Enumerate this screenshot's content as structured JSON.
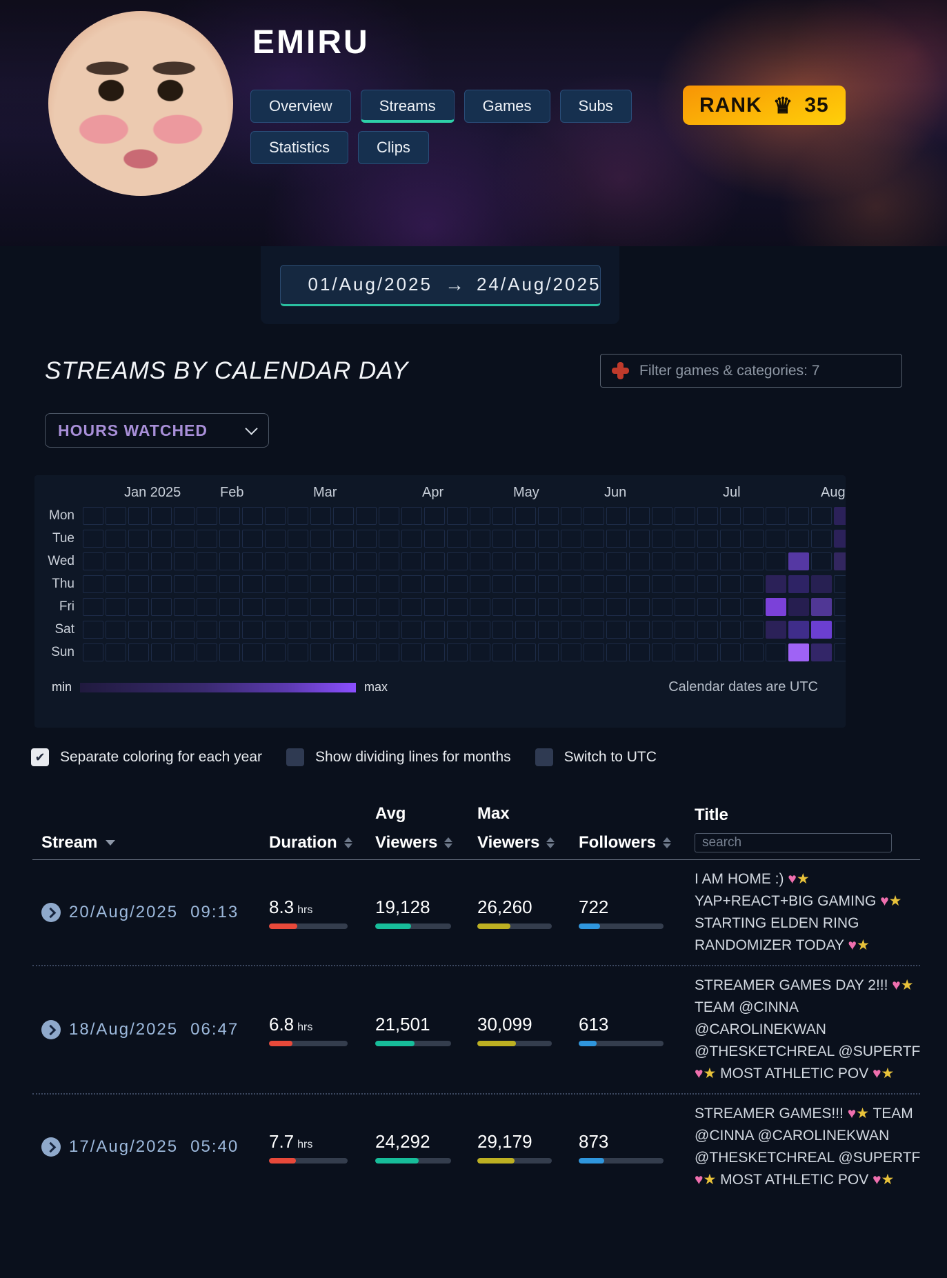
{
  "header": {
    "streamer_name": "EMIRU",
    "rank_label": "RANK",
    "rank_value": "35",
    "tabs": [
      {
        "label": "Overview",
        "active": false
      },
      {
        "label": "Streams",
        "active": true
      },
      {
        "label": "Games",
        "active": false
      },
      {
        "label": "Subs",
        "active": false
      },
      {
        "label": "Statistics",
        "active": false
      },
      {
        "label": "Clips",
        "active": false
      }
    ]
  },
  "date_range": {
    "start": "01/Aug/2025",
    "end": "24/Aug/2025"
  },
  "section": {
    "title": "STREAMS BY CALENDAR DAY",
    "filter_label": "Filter games & categories: 7",
    "metric_selector": "HOURS WATCHED"
  },
  "heatmap": {
    "type": "heatmap",
    "metric": "HOURS WATCHED",
    "weeks": 34,
    "days": [
      "Mon",
      "Tue",
      "Wed",
      "Thu",
      "Fri",
      "Sat",
      "Sun"
    ],
    "months": [
      {
        "label": "Jan 2025",
        "col": 0.3
      },
      {
        "label": "Feb",
        "col": 4.5
      },
      {
        "label": "Mar",
        "col": 8.6
      },
      {
        "label": "Apr",
        "col": 13.4
      },
      {
        "label": "May",
        "col": 17.4
      },
      {
        "label": "Jun",
        "col": 21.4
      },
      {
        "label": "Jul",
        "col": 26.6
      },
      {
        "label": "Aug",
        "col": 30.9
      }
    ],
    "cells": [
      {
        "day": "Mon",
        "col": 33,
        "color": "#2b2159"
      },
      {
        "day": "Tue",
        "col": 33,
        "color": "#2b2159"
      },
      {
        "day": "Wed",
        "col": 31,
        "color": "#5538a3"
      },
      {
        "day": "Wed",
        "col": 33,
        "color": "#32265f"
      },
      {
        "day": "Thu",
        "col": 30,
        "color": "#2b2158"
      },
      {
        "day": "Thu",
        "col": 31,
        "color": "#2e2365"
      },
      {
        "day": "Thu",
        "col": 32,
        "color": "#272052"
      },
      {
        "day": "Fri",
        "col": 30,
        "color": "#7b41d9"
      },
      {
        "day": "Fri",
        "col": 31,
        "color": "#261e50"
      },
      {
        "day": "Fri",
        "col": 32,
        "color": "#503795"
      },
      {
        "day": "Sat",
        "col": 30,
        "color": "#2b2158"
      },
      {
        "day": "Sat",
        "col": 31,
        "color": "#3f2d8a"
      },
      {
        "day": "Sat",
        "col": 32,
        "color": "#6b3fd1"
      },
      {
        "day": "Sun",
        "col": 31,
        "color": "#9f63f5"
      },
      {
        "day": "Sun",
        "col": 32,
        "color": "#332668"
      }
    ],
    "legend_min": "min",
    "legend_max": "max",
    "note": "Calendar dates are UTC"
  },
  "options": [
    {
      "label": "Separate coloring for each year",
      "checked": true
    },
    {
      "label": "Show dividing lines for months",
      "checked": false
    },
    {
      "label": "Switch to UTC",
      "checked": false
    }
  ],
  "table": {
    "columns": [
      {
        "label": "Stream",
        "sorted": true
      },
      {
        "label": "Duration",
        "sortable": true
      },
      {
        "label": "Avg Viewers",
        "sortable": true,
        "stacked": true
      },
      {
        "label": "Max Viewers",
        "sortable": true,
        "stacked": true
      },
      {
        "label": "Followers",
        "sortable": true
      },
      {
        "label": "Title",
        "search": true
      }
    ],
    "search_placeholder": "search",
    "bar_colors": {
      "duration": "#e8493a",
      "avg": "#17bd9a",
      "max": "#bdb022",
      "followers": "#2f96dd"
    },
    "rows": [
      {
        "date": "20/Aug/2025",
        "time": "09:13",
        "duration": "8.3",
        "duration_unit": "hrs",
        "avg_viewers": "19,128",
        "max_viewers": "26,260",
        "followers": "722",
        "title": "I AM HOME :) 💗⭐ YAP+REACT+BIG GAMING 💗⭐ STARTING ELDEN RING RANDOMIZER TODAY 💗⭐",
        "bars": {
          "duration": 36,
          "avg": 47,
          "max": 44,
          "followers": 25
        }
      },
      {
        "date": "18/Aug/2025",
        "time": "06:47",
        "duration": "6.8",
        "duration_unit": "hrs",
        "avg_viewers": "21,501",
        "max_viewers": "30,099",
        "followers": "613",
        "title": "STREAMER GAMES DAY 2!!! 💗⭐ TEAM @CINNA @CAROLINEKWAN @THESKETCHREAL @SUPERTF 💗⭐ MOST ATHLETIC POV 💗⭐",
        "bars": {
          "duration": 30,
          "avg": 52,
          "max": 52,
          "followers": 21
        }
      },
      {
        "date": "17/Aug/2025",
        "time": "05:40",
        "duration": "7.7",
        "duration_unit": "hrs",
        "avg_viewers": "24,292",
        "max_viewers": "29,179",
        "followers": "873",
        "title": "STREAMER GAMES!!! 💗⭐ TEAM @CINNA @CAROLINEKWAN @THESKETCHREAL @SUPERTF 💗⭐ MOST ATHLETIC POV 💗⭐",
        "bars": {
          "duration": 34,
          "avg": 57,
          "max": 50,
          "followers": 30
        }
      }
    ]
  }
}
